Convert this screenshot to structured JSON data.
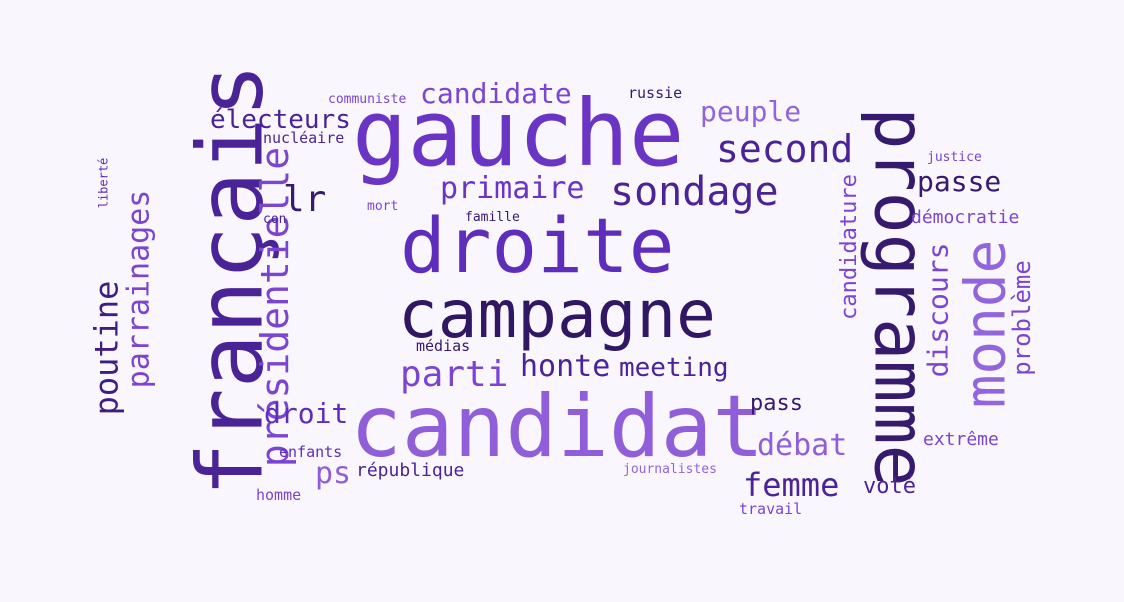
{
  "palette": {
    "background": "#f9f6fe",
    "dark": "#351a6e",
    "mid": "#6a35c4",
    "light": "#8f5ed8"
  },
  "words": [
    {
      "text": "gauche",
      "color": "#6a35c4"
    },
    {
      "text": "candidat",
      "color": "#8f5ed8"
    },
    {
      "text": "droite",
      "color": "#5f2dbb"
    },
    {
      "text": "campagne",
      "color": "#2f1763"
    },
    {
      "text": "français",
      "color": "#4a2496"
    },
    {
      "text": "programme",
      "color": "#351a6e"
    },
    {
      "text": "présidentielle",
      "color": "#7b45d0"
    },
    {
      "text": "monde",
      "color": "#9265dd"
    },
    {
      "text": "sondage",
      "color": "#4a2496"
    },
    {
      "text": "second",
      "color": "#4a2496"
    },
    {
      "text": "parrainages",
      "color": "#7b45d0"
    },
    {
      "text": "poutine",
      "color": "#3d1f82"
    },
    {
      "text": "primaire",
      "color": "#6a35c4"
    },
    {
      "text": "parti",
      "color": "#7b45d0"
    },
    {
      "text": "candidate",
      "color": "#7b45d0"
    },
    {
      "text": "peuple",
      "color": "#9265dd"
    },
    {
      "text": "électeurs",
      "color": "#4a2496"
    },
    {
      "text": "lr",
      "color": "#351a6e"
    },
    {
      "text": "passe",
      "color": "#351a6e"
    },
    {
      "text": "honte",
      "color": "#4a2496"
    },
    {
      "text": "meeting",
      "color": "#4a2496"
    },
    {
      "text": "discours",
      "color": "#7b45d0"
    },
    {
      "text": "problème",
      "color": "#7b45d0"
    },
    {
      "text": "candidature",
      "color": "#7b45d0"
    },
    {
      "text": "droit",
      "color": "#5f2dbb"
    },
    {
      "text": "débat",
      "color": "#8f5ed8"
    },
    {
      "text": "femme",
      "color": "#4a2496"
    },
    {
      "text": "ps",
      "color": "#8f5ed8"
    },
    {
      "text": "pass",
      "color": "#351a6e"
    },
    {
      "text": "voté",
      "color": "#4a2496"
    },
    {
      "text": "démocratie",
      "color": "#7b45d0"
    },
    {
      "text": "extrême",
      "color": "#7b45d0"
    },
    {
      "text": "république",
      "color": "#4a2496"
    },
    {
      "text": "enfants",
      "color": "#5f2dbb"
    },
    {
      "text": "homme",
      "color": "#7b45d0"
    },
    {
      "text": "nucléaire",
      "color": "#4a2496"
    },
    {
      "text": "communiste",
      "color": "#7b45d0"
    },
    {
      "text": "russie",
      "color": "#351a6e"
    },
    {
      "text": "médias",
      "color": "#351a6e"
    },
    {
      "text": "justice",
      "color": "#7b45d0"
    },
    {
      "text": "journalistes",
      "color": "#9265dd"
    },
    {
      "text": "travail",
      "color": "#7b45d0"
    },
    {
      "text": "liberté",
      "color": "#5f2dbb"
    },
    {
      "text": "mort",
      "color": "#7b45d0"
    },
    {
      "text": "con",
      "color": "#4a2496"
    },
    {
      "text": "famille",
      "color": "#351a6e"
    }
  ]
}
